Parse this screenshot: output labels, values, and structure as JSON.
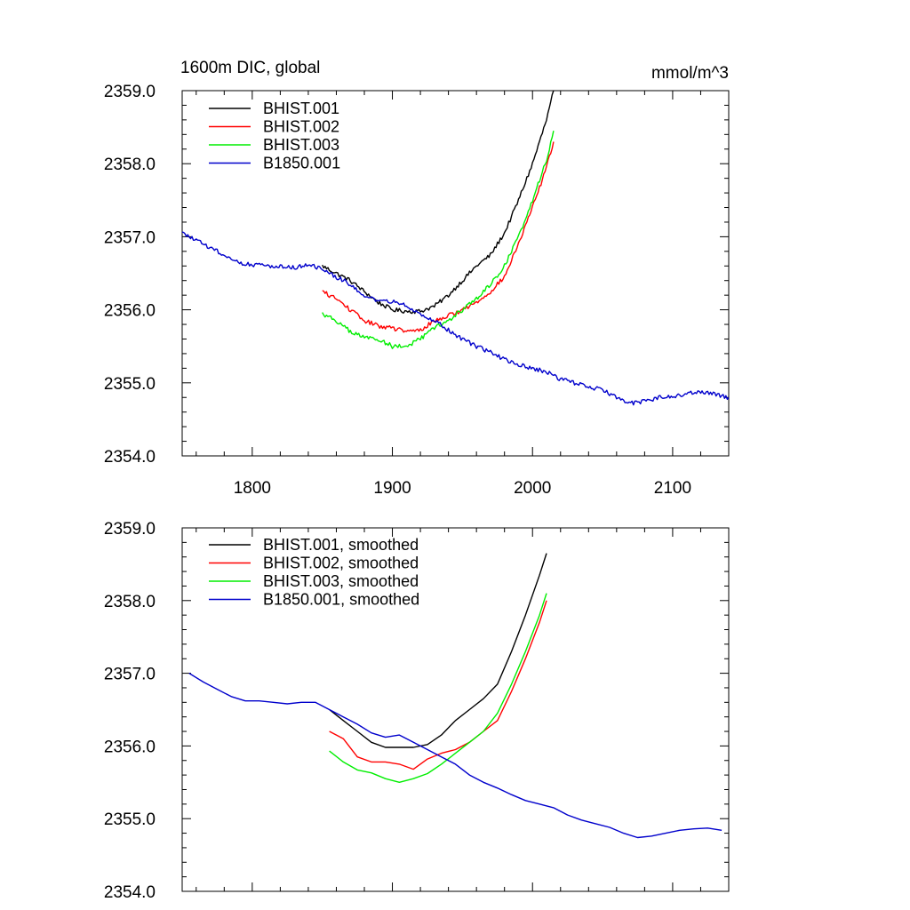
{
  "header": {
    "left_title": "1600m DIC, global",
    "right_units": "mmol/m^3"
  },
  "colors": {
    "BHIST.001": "#000000",
    "BHIST.002": "#ff0000",
    "BHIST.003": "#00ee00",
    "B1850.001": "#0000cc"
  },
  "chart_data": [
    {
      "type": "line",
      "panel": "top",
      "title": "1600m DIC, global",
      "units": "mmol/m^3",
      "xlabel": "",
      "ylabel": "",
      "xlim": [
        1750,
        2140
      ],
      "ylim": [
        2354.0,
        2359.0
      ],
      "x_ticks": [
        1800,
        1900,
        2000,
        2100
      ],
      "x_tick_labels": [
        "1800",
        "1900",
        "2000",
        "2100"
      ],
      "y_ticks": [
        2354.0,
        2355.0,
        2356.0,
        2357.0,
        2358.0,
        2359.0
      ],
      "y_tick_labels": [
        "2354.0",
        "2355.0",
        "2356.0",
        "2357.0",
        "2358.0",
        "2359.0"
      ],
      "grid": false,
      "legend_position": "top-left",
      "series": [
        {
          "name": "BHIST.001",
          "noise": 0.06,
          "x": [
            1850,
            1860,
            1870,
            1880,
            1890,
            1900,
            1910,
            1920,
            1930,
            1940,
            1950,
            1960,
            1970,
            1980,
            1990,
            2000,
            2010,
            2015
          ],
          "y": [
            2356.6,
            2356.5,
            2356.4,
            2356.25,
            2356.1,
            2356.0,
            2355.98,
            2355.98,
            2356.05,
            2356.2,
            2356.4,
            2356.6,
            2356.75,
            2357.05,
            2357.5,
            2358.0,
            2358.6,
            2359.0
          ]
        },
        {
          "name": "BHIST.002",
          "noise": 0.06,
          "x": [
            1850,
            1860,
            1870,
            1880,
            1890,
            1900,
            1910,
            1920,
            1930,
            1940,
            1950,
            1960,
            1970,
            1980,
            1990,
            2000,
            2010,
            2015
          ],
          "y": [
            2356.25,
            2356.15,
            2356.0,
            2355.85,
            2355.78,
            2355.75,
            2355.7,
            2355.72,
            2355.85,
            2355.92,
            2356.0,
            2356.1,
            2356.25,
            2356.45,
            2356.9,
            2357.4,
            2357.95,
            2358.3
          ]
        },
        {
          "name": "BHIST.003",
          "noise": 0.06,
          "x": [
            1850,
            1860,
            1870,
            1880,
            1890,
            1900,
            1910,
            1920,
            1930,
            1940,
            1950,
            1960,
            1970,
            1980,
            1990,
            2000,
            2010,
            2015
          ],
          "y": [
            2355.95,
            2355.85,
            2355.7,
            2355.62,
            2355.6,
            2355.5,
            2355.5,
            2355.6,
            2355.75,
            2355.85,
            2356.0,
            2356.15,
            2356.35,
            2356.6,
            2357.0,
            2357.5,
            2358.05,
            2358.45
          ]
        },
        {
          "name": "B1850.001",
          "noise": 0.06,
          "x": [
            1750,
            1760,
            1770,
            1780,
            1790,
            1800,
            1810,
            1820,
            1830,
            1840,
            1850,
            1860,
            1870,
            1880,
            1890,
            1900,
            1910,
            1920,
            1930,
            1940,
            1950,
            1960,
            1970,
            1980,
            1990,
            2000,
            2010,
            2020,
            2030,
            2040,
            2050,
            2060,
            2070,
            2080,
            2090,
            2100,
            2110,
            2120,
            2130,
            2140
          ],
          "y": [
            2357.05,
            2356.95,
            2356.85,
            2356.75,
            2356.65,
            2356.62,
            2356.6,
            2356.6,
            2356.58,
            2356.62,
            2356.55,
            2356.45,
            2356.35,
            2356.2,
            2356.1,
            2356.12,
            2356.05,
            2355.95,
            2355.85,
            2355.72,
            2355.6,
            2355.5,
            2355.42,
            2355.32,
            2355.25,
            2355.2,
            2355.15,
            2355.05,
            2355.0,
            2354.95,
            2354.9,
            2354.8,
            2354.72,
            2354.75,
            2354.8,
            2354.82,
            2354.85,
            2354.88,
            2354.85,
            2354.8
          ]
        }
      ]
    },
    {
      "type": "line",
      "panel": "bottom",
      "title": "",
      "xlabel": "",
      "ylabel": "",
      "xlim": [
        1750,
        2140
      ],
      "ylim": [
        2354.0,
        2359.0
      ],
      "x_ticks": [
        1800,
        1900,
        2000,
        2100
      ],
      "x_tick_labels": [],
      "y_ticks": [
        2354.0,
        2355.0,
        2356.0,
        2357.0,
        2358.0,
        2359.0
      ],
      "y_tick_labels": [
        "2354.0",
        "2355.0",
        "2356.0",
        "2357.0",
        "2358.0",
        "2359.0"
      ],
      "grid": false,
      "legend_position": "top-left",
      "series": [
        {
          "name": "BHIST.001, smoothed",
          "noise": 0,
          "x": [
            1855,
            1865,
            1875,
            1885,
            1895,
            1905,
            1915,
            1925,
            1935,
            1945,
            1955,
            1965,
            1975,
            1985,
            1995,
            2005,
            2010
          ],
          "y": [
            2356.5,
            2356.35,
            2356.2,
            2356.05,
            2355.98,
            2355.98,
            2355.98,
            2356.02,
            2356.15,
            2356.35,
            2356.5,
            2356.65,
            2356.85,
            2357.3,
            2357.8,
            2358.35,
            2358.65
          ]
        },
        {
          "name": "BHIST.002, smoothed",
          "noise": 0,
          "x": [
            1855,
            1865,
            1875,
            1885,
            1895,
            1905,
            1915,
            1925,
            1935,
            1945,
            1955,
            1965,
            1975,
            1985,
            1995,
            2005,
            2010
          ],
          "y": [
            2356.2,
            2356.1,
            2355.85,
            2355.78,
            2355.78,
            2355.75,
            2355.68,
            2355.82,
            2355.9,
            2355.95,
            2356.05,
            2356.2,
            2356.35,
            2356.75,
            2357.2,
            2357.7,
            2358.0
          ]
        },
        {
          "name": "BHIST.003, smoothed",
          "noise": 0,
          "x": [
            1855,
            1865,
            1875,
            1885,
            1895,
            1905,
            1915,
            1925,
            1935,
            1945,
            1955,
            1965,
            1975,
            1985,
            1995,
            2005,
            2010
          ],
          "y": [
            2355.93,
            2355.78,
            2355.67,
            2355.63,
            2355.55,
            2355.5,
            2355.55,
            2355.62,
            2355.75,
            2355.9,
            2356.05,
            2356.2,
            2356.45,
            2356.85,
            2357.3,
            2357.8,
            2358.1
          ]
        },
        {
          "name": "B1850.001, smoothed",
          "noise": 0,
          "x": [
            1755,
            1765,
            1775,
            1785,
            1795,
            1805,
            1815,
            1825,
            1835,
            1845,
            1855,
            1865,
            1875,
            1885,
            1895,
            1905,
            1915,
            1925,
            1935,
            1945,
            1955,
            1965,
            1975,
            1985,
            1995,
            2005,
            2015,
            2025,
            2035,
            2045,
            2055,
            2065,
            2075,
            2085,
            2095,
            2105,
            2115,
            2125,
            2135
          ],
          "y": [
            2357.0,
            2356.88,
            2356.78,
            2356.68,
            2356.62,
            2356.62,
            2356.6,
            2356.58,
            2356.6,
            2356.6,
            2356.5,
            2356.4,
            2356.3,
            2356.18,
            2356.12,
            2356.15,
            2356.05,
            2355.95,
            2355.85,
            2355.75,
            2355.6,
            2355.5,
            2355.42,
            2355.33,
            2355.25,
            2355.2,
            2355.15,
            2355.05,
            2354.98,
            2354.93,
            2354.88,
            2354.8,
            2354.74,
            2354.76,
            2354.8,
            2354.84,
            2354.86,
            2354.87,
            2354.84
          ]
        }
      ]
    }
  ]
}
